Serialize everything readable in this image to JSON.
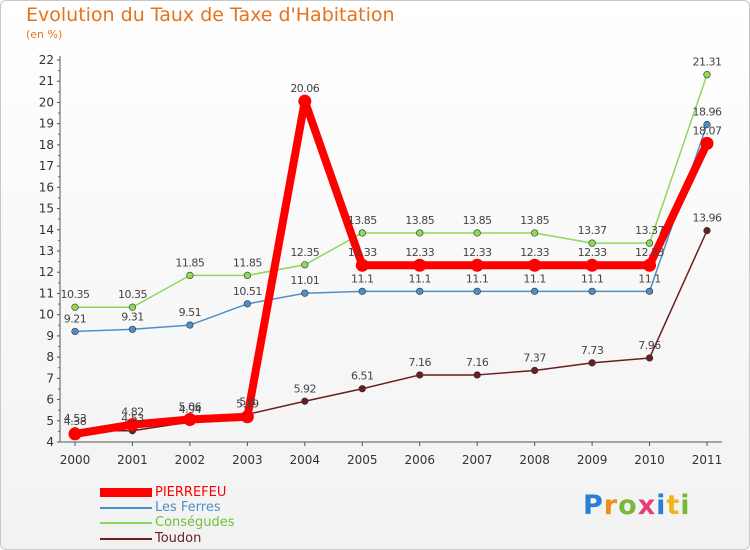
{
  "header": {
    "title": "Evolution du Taux de Taxe d'Habitation",
    "unit": "(en %)"
  },
  "chart_data": {
    "type": "line",
    "title": "Evolution du Taux de Taxe d'Habitation",
    "ylabel": "(en %)",
    "xlabel": "",
    "x": [
      "2000",
      "2001",
      "2002",
      "2003",
      "2004",
      "2005",
      "2006",
      "2007",
      "2008",
      "2009",
      "2010",
      "2011"
    ],
    "ylim": [
      4,
      22
    ],
    "yticks": [
      "4",
      "5",
      "6",
      "7",
      "8",
      "9",
      "10",
      "11",
      "12",
      "13",
      "14",
      "15",
      "16",
      "17",
      "18",
      "19",
      "20",
      "21",
      "22"
    ],
    "grid": false,
    "legend_position": "bottom-left",
    "series": [
      {
        "name": "PIERREFEU",
        "color": "#ff0000",
        "values": [
          4.38,
          4.82,
          5.06,
          5.19,
          20.06,
          12.33,
          12.33,
          12.33,
          12.33,
          12.33,
          12.33,
          18.07
        ],
        "labels": [
          "4.38",
          "4.82",
          "5.06",
          "5.19",
          "20.06",
          "12.33",
          "12.33",
          "12.33",
          "12.33",
          "12.33",
          "12.33",
          "18.07"
        ]
      },
      {
        "name": "Les Ferres",
        "color": "#4f8fc8",
        "values": [
          9.21,
          9.31,
          9.51,
          10.51,
          11.01,
          11.1,
          11.1,
          11.1,
          11.1,
          11.1,
          11.1,
          18.96
        ],
        "labels": [
          "9.21",
          "9.31",
          "9.51",
          "10.51",
          "11.01",
          "11.1",
          "11.1",
          "11.1",
          "11.1",
          "11.1",
          "11.1",
          "18.96"
        ]
      },
      {
        "name": "Conségudes",
        "color": "#8ed85a",
        "values": [
          10.35,
          10.35,
          11.85,
          11.85,
          12.35,
          13.85,
          13.85,
          13.85,
          13.85,
          13.37,
          13.37,
          21.31
        ],
        "labels": [
          "10.35",
          "10.35",
          "11.85",
          "11.85",
          "12.35",
          "13.85",
          "13.85",
          "13.85",
          "13.85",
          "13.37",
          "13.37",
          "21.31"
        ]
      },
      {
        "name": "Toudon",
        "color": "#6b1e1e",
        "values": [
          4.53,
          4.53,
          4.94,
          5.3,
          5.92,
          6.51,
          7.16,
          7.16,
          7.37,
          7.73,
          7.96,
          13.96
        ],
        "labels": [
          "4.53",
          "4.53",
          "4.94",
          "5.3",
          "5.92",
          "6.51",
          "7.16",
          "7.16",
          "7.37",
          "7.73",
          "7.96",
          "13.96"
        ]
      }
    ]
  },
  "logo": {
    "text": "Proxiti",
    "colors": [
      "#2a7fd4",
      "#f08c1e",
      "#7ab83a",
      "#e83c78",
      "#2a7fd4",
      "#f0b41e",
      "#7ab83a"
    ]
  }
}
